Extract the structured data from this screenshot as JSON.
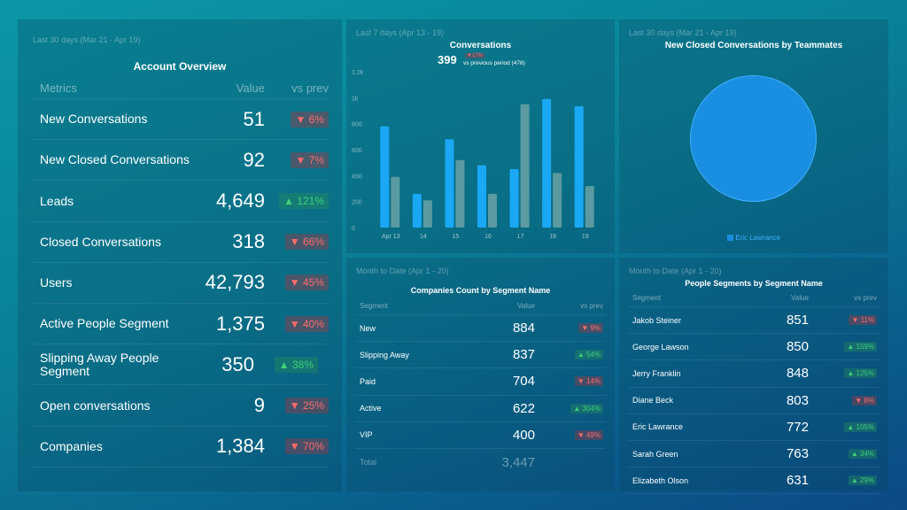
{
  "account_overview": {
    "date_range": "Last 30 days (Mar 21 - Apr 19)",
    "title": "Account Overview",
    "headers": [
      "Metrics",
      "Value",
      "vs prev"
    ],
    "rows": [
      {
        "metric": "New Conversations",
        "value": "51",
        "change": "6%",
        "dir": "down"
      },
      {
        "metric": "New Closed Conversations",
        "value": "92",
        "change": "7%",
        "dir": "down"
      },
      {
        "metric": "Leads",
        "value": "4,649",
        "change": "121%",
        "dir": "up"
      },
      {
        "metric": "Closed Conversations",
        "value": "318",
        "change": "66%",
        "dir": "down"
      },
      {
        "metric": "Users",
        "value": "42,793",
        "change": "45%",
        "dir": "down"
      },
      {
        "metric": "Active People Segment",
        "value": "1,375",
        "change": "40%",
        "dir": "down"
      },
      {
        "metric": "Slipping Away People Segment",
        "value": "350",
        "change": "38%",
        "dir": "up"
      },
      {
        "metric": "Open conversations",
        "value": "9",
        "change": "25%",
        "dir": "down"
      },
      {
        "metric": "Companies",
        "value": "1,384",
        "change": "70%",
        "dir": "down"
      }
    ]
  },
  "conversations": {
    "date_range": "Last 7 days (Apr 13 - 19)",
    "title": "Conversations",
    "total": "399",
    "change": "17%",
    "change_dir": "down",
    "comparison": "vs previous period (478)"
  },
  "chart_data": {
    "type": "bar",
    "title": "Conversations",
    "categories": [
      "Apr 13",
      "14",
      "15",
      "16",
      "17",
      "18",
      "19"
    ],
    "y_ticks": [
      "0",
      "200",
      "400",
      "600",
      "800",
      "1k",
      "1.2k"
    ],
    "ylim": [
      0,
      1200
    ],
    "grid": false,
    "series": [
      {
        "values": [
          780,
          260,
          680,
          480,
          450,
          990,
          935
        ],
        "color": "#1aa8f5"
      },
      {
        "values": [
          390,
          210,
          520,
          260,
          950,
          420,
          320
        ],
        "color": "#5a9aa0"
      }
    ]
  },
  "teammates": {
    "date_range": "Last 30 days (Mar 21 - Apr 19)",
    "title": "New Closed Conversations by Teammates",
    "legend": "Eric Lawrance",
    "color": "#1a8ee0"
  },
  "companies": {
    "date_range": "Month to Date (Apr 1 - 20)",
    "title": "Companies Count by Segment Name",
    "headers": [
      "Segment",
      "Value",
      "vs prev"
    ],
    "rows": [
      {
        "name": "New",
        "value": "884",
        "change": "9%",
        "dir": "down"
      },
      {
        "name": "Slipping Away",
        "value": "837",
        "change": "54%",
        "dir": "up"
      },
      {
        "name": "Paid",
        "value": "704",
        "change": "14%",
        "dir": "down"
      },
      {
        "name": "Active",
        "value": "622",
        "change": "304%",
        "dir": "up"
      },
      {
        "name": "VIP",
        "value": "400",
        "change": "49%",
        "dir": "down"
      }
    ],
    "total_label": "Total",
    "total": "3,447"
  },
  "people": {
    "date_range": "Month to Date (Apr 1 - 20)",
    "title": "People Segments by Segment Name",
    "headers": [
      "Segment",
      "Value",
      "vs prev"
    ],
    "rows": [
      {
        "name": "Jakob Steiner",
        "value": "851",
        "change": "11%",
        "dir": "down"
      },
      {
        "name": "George Lawson",
        "value": "850",
        "change": "159%",
        "dir": "up"
      },
      {
        "name": "Jerry Franklin",
        "value": "848",
        "change": "125%",
        "dir": "up"
      },
      {
        "name": "Diane Beck",
        "value": "803",
        "change": "8%",
        "dir": "down"
      },
      {
        "name": "Eric Lawrance",
        "value": "772",
        "change": "105%",
        "dir": "up"
      },
      {
        "name": "Sarah Green",
        "value": "763",
        "change": "34%",
        "dir": "up"
      },
      {
        "name": "Elizabeth Olson",
        "value": "631",
        "change": "29%",
        "dir": "up"
      }
    ]
  }
}
